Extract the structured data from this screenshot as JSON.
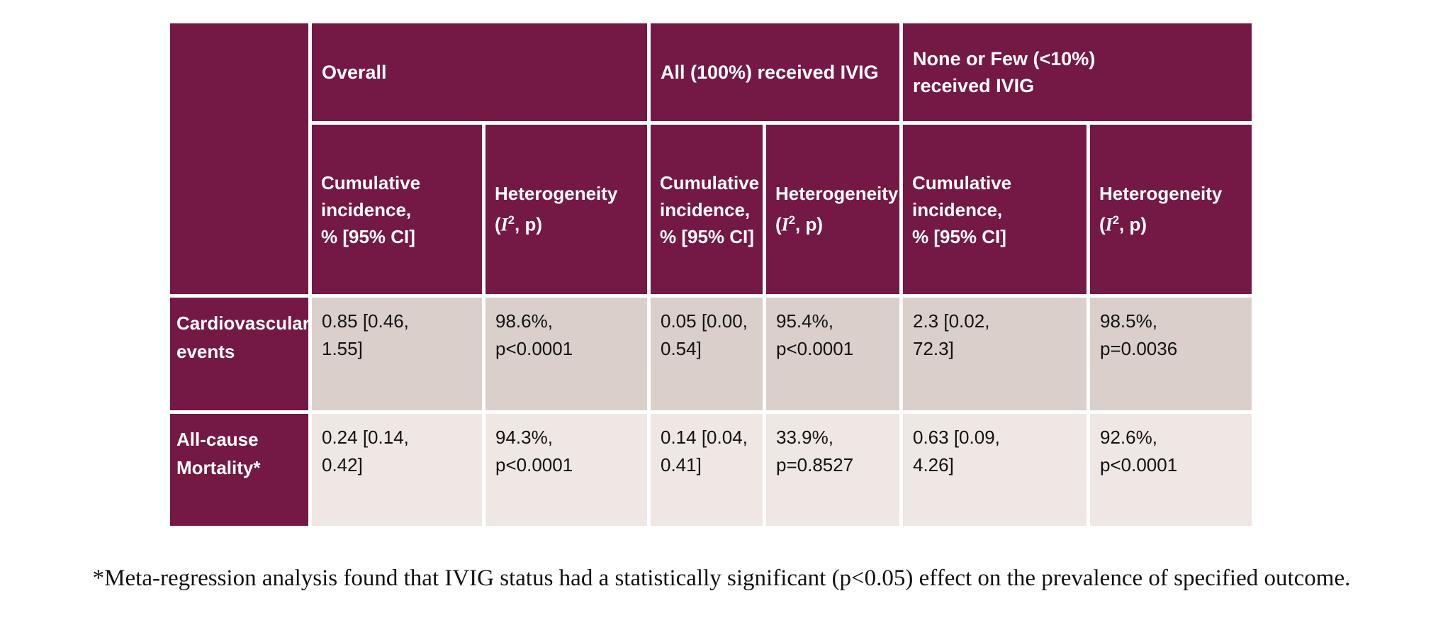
{
  "colors": {
    "header_bg": "#741845",
    "row1_bg": "#dbcfcb",
    "row2_bg": "#efe7e4",
    "header_text": "#ffffff",
    "data_text": "#111111"
  },
  "table": {
    "corner_label": "",
    "groups": [
      {
        "label": "Overall"
      },
      {
        "label": "All (100%) received IVIG"
      },
      {
        "label": "None or Few (<10%)\nreceived IVIG"
      }
    ],
    "subheader": {
      "cumulative": "Cumulative\nincidence,\n% [95% CI]",
      "heterogeneity": "Heterogeneity",
      "het_open": "(",
      "het_i": "I",
      "het_sup": "2",
      "het_close": ", p)"
    },
    "rows": [
      {
        "label": "Cardiovascular\nevents",
        "cells": [
          "0.85 [0.46,\n1.55]",
          "98.6%,\np<0.0001",
          "0.05 [0.00,\n0.54]",
          "95.4%,\np<0.0001",
          "2.3 [0.02,\n72.3]",
          "98.5%,\np=0.0036"
        ]
      },
      {
        "label": "All-cause\nMortality*",
        "cells": [
          "0.24 [0.14,\n0.42]",
          "94.3%,\np<0.0001",
          "0.14 [0.04,\n0.41]",
          "33.9%,\np=0.8527",
          "0.63 [0.09,\n4.26]",
          "92.6%,\np<0.0001"
        ]
      }
    ]
  },
  "footnote": "*Meta-regression analysis found that IVIG status had a statistically significant (p<0.05) effect on the prevalence of specified outcome."
}
